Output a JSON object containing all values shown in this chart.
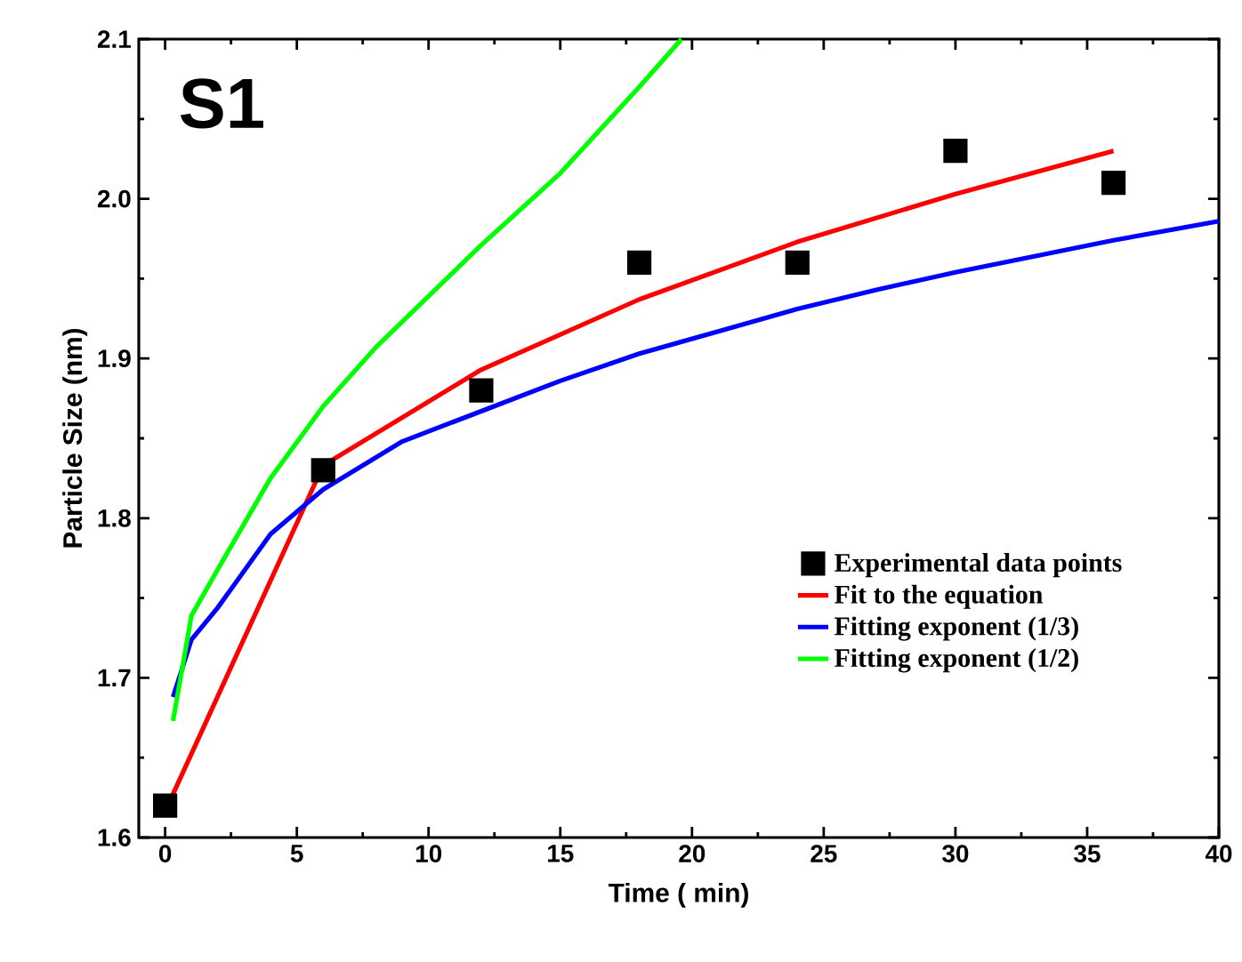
{
  "chart_data": {
    "type": "line",
    "xlabel": "Time ( min)",
    "ylabel": "Particle Size (nm)",
    "xlim": [
      -1,
      40
    ],
    "ylim": [
      1.6,
      2.1
    ],
    "xticks": [
      0,
      5,
      10,
      15,
      20,
      25,
      30,
      35,
      40
    ],
    "yticks": [
      {
        "value": 1.6,
        "label": "1.6"
      },
      {
        "value": 1.7,
        "label": "1.7"
      },
      {
        "value": 1.8,
        "label": "1.8"
      },
      {
        "value": 1.9,
        "label": "1.9"
      },
      {
        "value": 2.0,
        "label": "2.0"
      },
      {
        "value": 2.1,
        "label": "2.1"
      }
    ],
    "annotations": [
      "S1"
    ],
    "legend": "bottom right",
    "series": [
      {
        "name": "Experimental data points",
        "type": "scatter",
        "marker": "square",
        "color": "#000000",
        "x": [
          0,
          6,
          12,
          18,
          24,
          30,
          36
        ],
        "values": [
          1.62,
          1.83,
          1.88,
          1.96,
          1.96,
          2.03,
          2.01
        ]
      },
      {
        "name": "Fit to the equation",
        "color": "#ff0000",
        "x": [
          0.1,
          6,
          12,
          18,
          24,
          30,
          36
        ],
        "values": [
          1.62,
          1.833,
          1.893,
          1.937,
          1.973,
          2.003,
          2.03
        ]
      },
      {
        "name": "Fitting exponent (1/3)",
        "color": "#0000ff",
        "x": [
          0.3,
          1,
          2,
          4,
          6,
          9,
          12,
          15,
          18,
          21,
          24,
          27,
          30,
          33,
          36,
          40
        ],
        "values": [
          1.688,
          1.724,
          1.744,
          1.79,
          1.818,
          1.848,
          1.867,
          1.886,
          1.903,
          1.917,
          1.931,
          1.943,
          1.954,
          1.964,
          1.974,
          1.986
        ]
      },
      {
        "name": "Fitting exponent (1/2)",
        "color": "#00ff00",
        "x": [
          0.3,
          1,
          2,
          4,
          6,
          8,
          10,
          12,
          15,
          18,
          19.6
        ],
        "values": [
          1.673,
          1.739,
          1.768,
          1.825,
          1.87,
          1.907,
          1.939,
          1.971,
          2.016,
          2.07,
          2.1
        ]
      }
    ]
  }
}
